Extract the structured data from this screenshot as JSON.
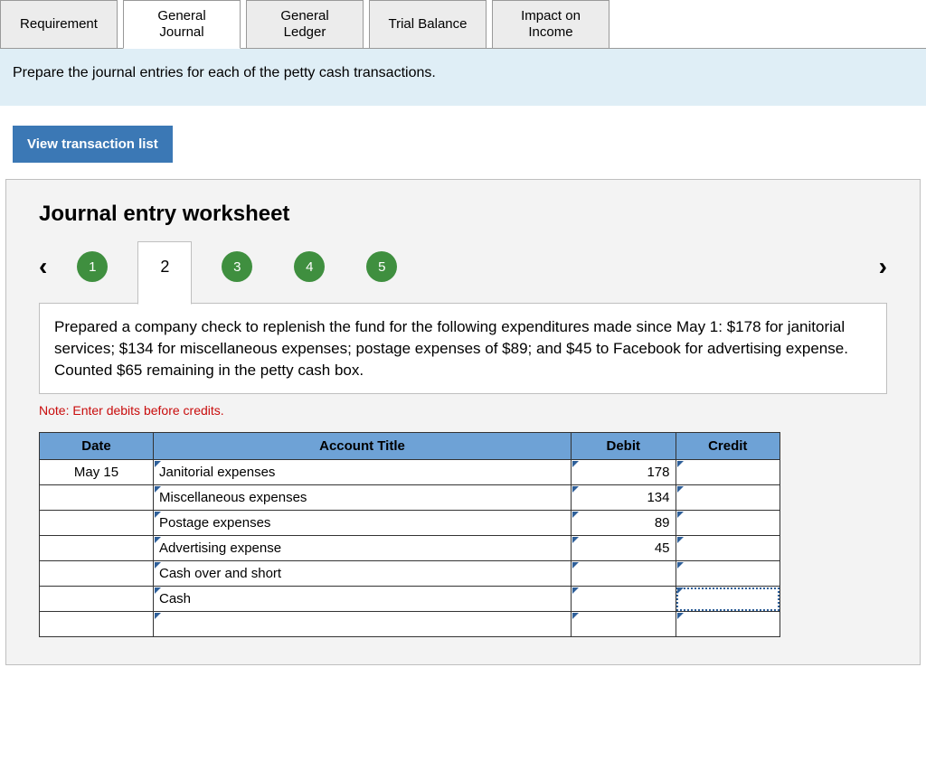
{
  "tabs": [
    {
      "label": "Requirement",
      "active": false
    },
    {
      "label": "General\nJournal",
      "active": true
    },
    {
      "label": "General\nLedger",
      "active": false
    },
    {
      "label": "Trial Balance",
      "active": false
    },
    {
      "label": "Impact on\nIncome",
      "active": false
    }
  ],
  "instruction": "Prepare the journal entries for each of the petty cash transactions.",
  "view_button": "View transaction list",
  "worksheet": {
    "title": "Journal entry worksheet",
    "steps": [
      "1",
      "2",
      "3",
      "4",
      "5"
    ],
    "active_step_index": 1,
    "description": "Prepared a company check to replenish the fund for the following expenditures made since May 1: $178 for janitorial services; $134 for miscellaneous expenses; postage expenses of $89; and $45 to Facebook for advertising expense. Counted $65 remaining in the petty cash box.",
    "note": "Note: Enter debits before credits.",
    "columns": [
      "Date",
      "Account Title",
      "Debit",
      "Credit"
    ],
    "rows": [
      {
        "date": "May 15",
        "account": "Janitorial expenses",
        "debit": "178",
        "credit": ""
      },
      {
        "date": "",
        "account": "Miscellaneous expenses",
        "debit": "134",
        "credit": ""
      },
      {
        "date": "",
        "account": "Postage expenses",
        "debit": "89",
        "credit": ""
      },
      {
        "date": "",
        "account": "Advertising expense",
        "debit": "45",
        "credit": ""
      },
      {
        "date": "",
        "account": "Cash over and short",
        "debit": "",
        "credit": ""
      },
      {
        "date": "",
        "account": "Cash",
        "debit": "",
        "credit": "",
        "credit_focused": true
      },
      {
        "date": "",
        "account": "",
        "debit": "",
        "credit": ""
      }
    ],
    "colors": {
      "tab_bg": "#ececec",
      "band_bg": "#dfeef6",
      "button_bg": "#3b78b5",
      "panel_bg": "#f3f3f3",
      "step_bg": "#3f8f3f",
      "th_bg": "#6ea2d6",
      "triangle": "#2e5f99",
      "note": "#c90c0c"
    }
  }
}
